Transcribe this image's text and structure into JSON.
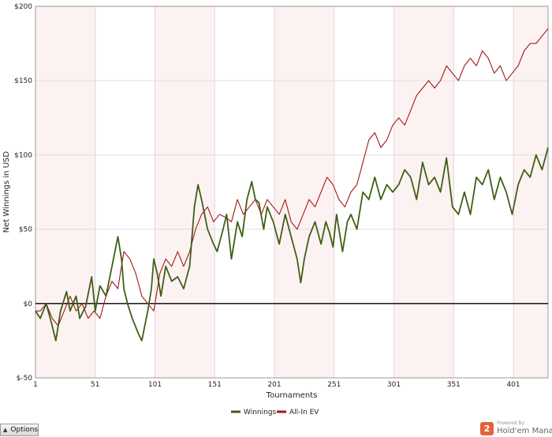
{
  "chart_data": {
    "type": "line",
    "title": "",
    "xlabel": "Tournaments",
    "ylabel": "Net Winnings in USD",
    "xlim": [
      1,
      430
    ],
    "ylim": [
      -50,
      200
    ],
    "x_ticks": [
      1,
      51,
      101,
      151,
      201,
      251,
      301,
      351,
      401
    ],
    "y_ticks": [
      -50,
      0,
      50,
      100,
      150,
      200
    ],
    "y_tick_labels": [
      "$-50",
      "$0",
      "$50",
      "$100",
      "$150",
      "$200"
    ],
    "grid": true,
    "legend_position": "bottom-center",
    "series": [
      {
        "name": "Winnings",
        "color": "#3f5f16",
        "x": [
          1,
          5,
          10,
          15,
          18,
          22,
          27,
          30,
          35,
          38,
          43,
          48,
          51,
          55,
          60,
          65,
          70,
          73,
          75,
          78,
          82,
          87,
          90,
          95,
          98,
          100,
          103,
          106,
          110,
          115,
          120,
          125,
          130,
          134,
          137,
          140,
          145,
          150,
          153,
          158,
          161,
          165,
          170,
          174,
          178,
          182,
          185,
          188,
          192,
          195,
          200,
          205,
          210,
          215,
          220,
          223,
          226,
          230,
          235,
          240,
          244,
          247,
          250,
          253,
          258,
          262,
          265,
          270,
          275,
          280,
          285,
          290,
          295,
          300,
          305,
          310,
          315,
          320,
          325,
          330,
          335,
          340,
          345,
          350,
          355,
          360,
          365,
          370,
          375,
          380,
          385,
          390,
          395,
          400,
          405,
          410,
          415,
          420,
          425,
          430
        ],
        "y": [
          -5,
          -10,
          0,
          -15,
          -25,
          -5,
          8,
          -5,
          5,
          -10,
          -2,
          18,
          -5,
          12,
          5,
          25,
          45,
          30,
          10,
          0,
          -10,
          -20,
          -25,
          -5,
          10,
          30,
          20,
          5,
          25,
          15,
          18,
          10,
          25,
          65,
          80,
          70,
          50,
          40,
          35,
          50,
          60,
          30,
          55,
          45,
          70,
          82,
          70,
          68,
          50,
          65,
          55,
          40,
          60,
          45,
          30,
          14,
          30,
          45,
          55,
          40,
          55,
          48,
          38,
          60,
          35,
          55,
          60,
          50,
          75,
          70,
          85,
          70,
          80,
          75,
          80,
          90,
          85,
          70,
          95,
          80,
          85,
          75,
          98,
          65,
          60,
          75,
          60,
          85,
          80,
          90,
          70,
          85,
          75,
          60,
          80,
          90,
          85,
          100,
          90,
          105
        ]
      },
      {
        "name": "All-In EV",
        "color": "#a31818",
        "x": [
          1,
          5,
          10,
          15,
          20,
          25,
          30,
          35,
          40,
          45,
          50,
          55,
          60,
          65,
          70,
          75,
          80,
          85,
          90,
          95,
          100,
          105,
          110,
          115,
          120,
          125,
          130,
          135,
          140,
          145,
          150,
          155,
          160,
          165,
          170,
          175,
          180,
          185,
          190,
          195,
          200,
          205,
          210,
          215,
          220,
          225,
          230,
          235,
          240,
          245,
          250,
          255,
          260,
          265,
          270,
          275,
          280,
          285,
          290,
          295,
          300,
          305,
          310,
          315,
          320,
          325,
          330,
          335,
          340,
          345,
          350,
          355,
          360,
          365,
          370,
          375,
          380,
          385,
          390,
          395,
          400,
          405,
          410,
          415,
          420,
          425,
          430
        ],
        "y": [
          -5,
          -5,
          0,
          -10,
          -15,
          -5,
          5,
          -5,
          0,
          -10,
          -5,
          -10,
          5,
          15,
          10,
          35,
          30,
          20,
          5,
          0,
          -5,
          20,
          30,
          25,
          35,
          25,
          35,
          50,
          60,
          65,
          55,
          60,
          58,
          55,
          70,
          60,
          65,
          70,
          60,
          70,
          65,
          60,
          70,
          55,
          50,
          60,
          70,
          65,
          75,
          85,
          80,
          70,
          65,
          75,
          80,
          95,
          110,
          115,
          105,
          110,
          120,
          125,
          120,
          130,
          140,
          145,
          150,
          145,
          150,
          160,
          155,
          150,
          160,
          165,
          160,
          170,
          165,
          155,
          160,
          150,
          155,
          160,
          170,
          175,
          175,
          180,
          185
        ]
      }
    ]
  },
  "ui": {
    "options_label": "Options",
    "powered_by": "Powered By",
    "brand_name": "Hold'em Manager",
    "brand_logo_char": "2"
  }
}
